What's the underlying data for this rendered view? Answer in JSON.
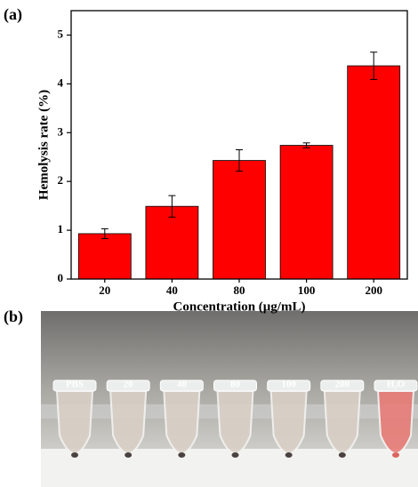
{
  "panel_labels": [
    "(a)",
    "(b)"
  ],
  "chart_data": {
    "type": "bar",
    "x_label": "Concentration (μg/mL)",
    "y_label": "Hemolysis rate (%)",
    "categories": [
      "20",
      "40",
      "80",
      "100",
      "200"
    ],
    "values": [
      0.93,
      1.49,
      2.43,
      2.74,
      4.37
    ],
    "errors": [
      0.1,
      0.22,
      0.22,
      0.05,
      0.28
    ],
    "color": "#ff0000",
    "ylim": [
      0,
      5.5
    ],
    "yticks": [
      0,
      1,
      2,
      3,
      4,
      5
    ]
  },
  "photo": {
    "tube_labels": [
      "PBS",
      "20",
      "40",
      "80",
      "100",
      "200",
      "H₂O"
    ]
  }
}
